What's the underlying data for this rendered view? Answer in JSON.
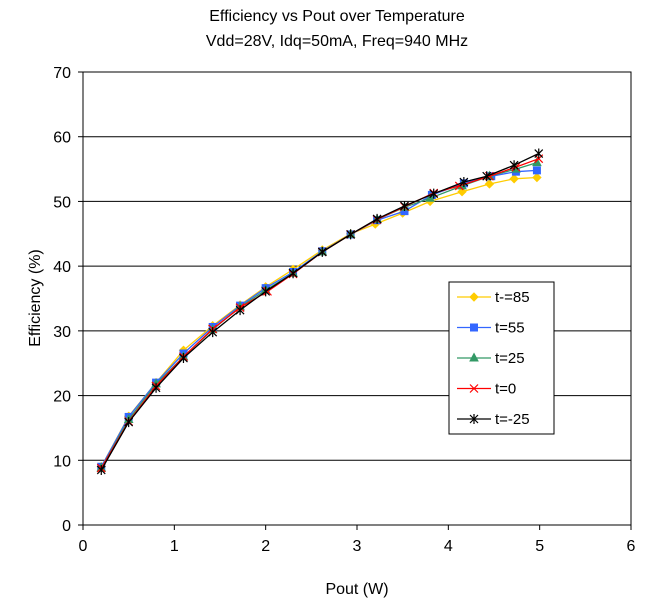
{
  "chart_data": {
    "type": "line",
    "title": "Efficiency vs Pout over Temperature",
    "subtitle": "Vdd=28V, Idq=50mA, Freq=940 MHz",
    "xlabel": "Pout (W)",
    "ylabel": "Efficiency (%)",
    "xlim": [
      0,
      6
    ],
    "ylim": [
      0,
      70
    ],
    "xticks": [
      0,
      1,
      2,
      3,
      4,
      5,
      6
    ],
    "yticks": [
      0,
      10,
      20,
      30,
      40,
      50,
      60,
      70
    ],
    "grid": "horizontal",
    "legend_position": "right",
    "series": [
      {
        "name": "t-=85",
        "color": "#FFCC00",
        "marker": "diamond",
        "x": [
          0.2,
          0.5,
          0.8,
          1.1,
          1.42,
          1.72,
          2.0,
          2.3,
          2.62,
          2.93,
          3.2,
          3.5,
          3.8,
          4.15,
          4.45,
          4.72,
          4.97
        ],
        "y": [
          9.0,
          16.8,
          22.0,
          27.0,
          30.8,
          34.0,
          36.8,
          39.5,
          42.5,
          45.0,
          46.5,
          48.2,
          50.0,
          51.5,
          52.7,
          53.5,
          53.7
        ]
      },
      {
        "name": "t=55",
        "color": "#3366FF",
        "marker": "square",
        "x": [
          0.2,
          0.5,
          0.8,
          1.1,
          1.42,
          1.72,
          2.0,
          2.3,
          2.62,
          2.93,
          3.22,
          3.52,
          3.82,
          4.17,
          4.47,
          4.74,
          4.97
        ],
        "y": [
          9.0,
          16.7,
          22.0,
          26.5,
          30.6,
          33.9,
          36.6,
          39.1,
          42.3,
          44.9,
          47.1,
          48.5,
          51.0,
          52.8,
          53.9,
          54.6,
          54.8
        ]
      },
      {
        "name": "t=25",
        "color": "#339966",
        "marker": "triangle",
        "x": [
          0.2,
          0.5,
          0.8,
          1.1,
          1.42,
          1.72,
          2.0,
          2.3,
          2.62,
          2.93,
          3.22,
          3.52,
          3.8,
          4.15,
          4.45,
          4.74,
          4.97
        ],
        "y": [
          8.8,
          16.3,
          21.8,
          26.0,
          30.2,
          33.7,
          36.3,
          38.9,
          42.2,
          44.9,
          47.2,
          49.1,
          50.5,
          52.4,
          53.9,
          55.0,
          56.0
        ]
      },
      {
        "name": "t=0",
        "color": "#FF0000",
        "marker": "x",
        "x": [
          0.2,
          0.5,
          0.8,
          1.1,
          1.42,
          1.72,
          2.02,
          2.3,
          2.62,
          2.93,
          3.22,
          3.52,
          3.84,
          4.12,
          4.45,
          4.74,
          4.99
        ],
        "y": [
          8.8,
          16.0,
          21.5,
          26.0,
          30.3,
          33.6,
          36.1,
          38.8,
          42.2,
          44.9,
          47.2,
          49.2,
          51.3,
          52.4,
          53.9,
          55.3,
          56.6
        ]
      },
      {
        "name": "t=-25",
        "color": "#000000",
        "marker": "star",
        "x": [
          0.2,
          0.5,
          0.8,
          1.1,
          1.42,
          1.72,
          2.0,
          2.3,
          2.62,
          2.93,
          3.22,
          3.52,
          3.84,
          4.17,
          4.42,
          4.72,
          4.99
        ],
        "y": [
          8.5,
          15.9,
          21.2,
          25.8,
          29.8,
          33.2,
          36.1,
          38.9,
          42.2,
          44.9,
          47.3,
          49.3,
          51.2,
          53.0,
          53.9,
          55.6,
          57.4
        ]
      }
    ]
  }
}
